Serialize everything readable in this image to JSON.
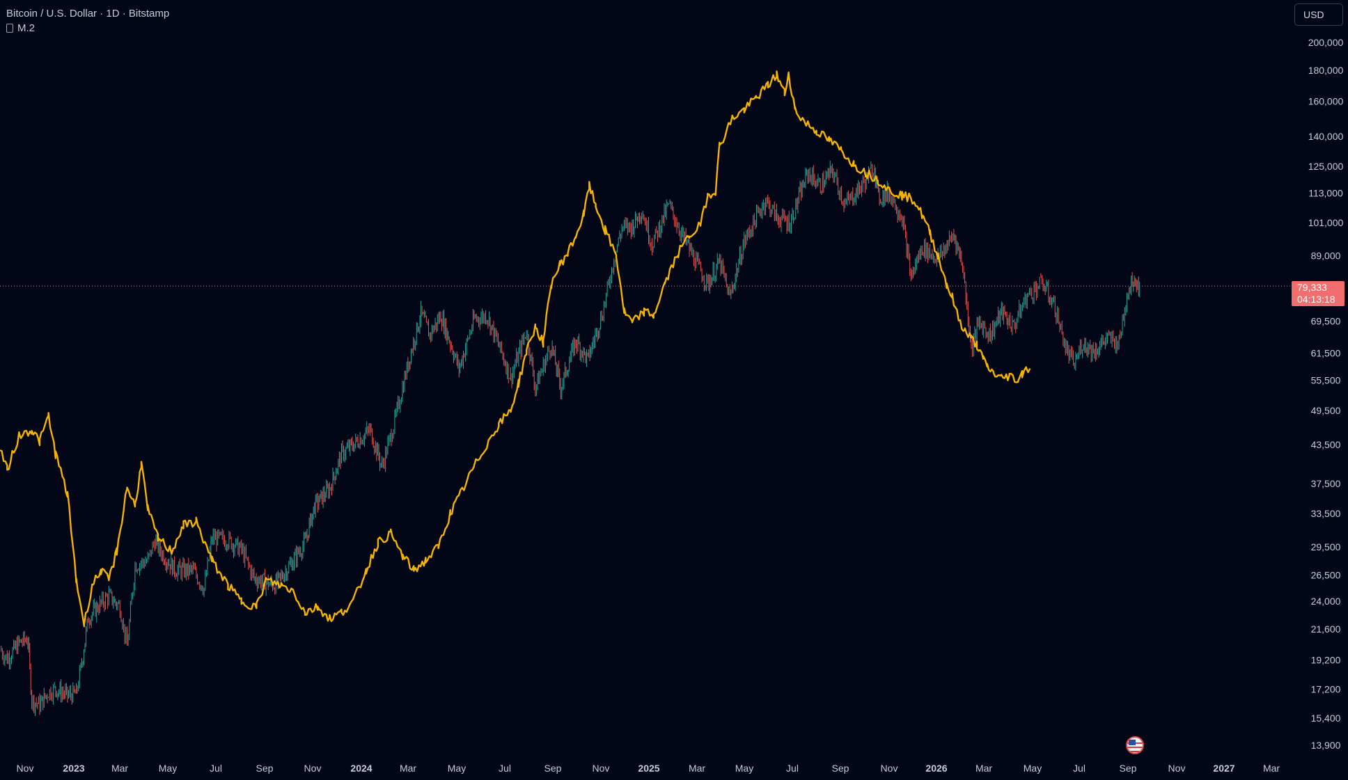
{
  "header": {
    "title": "Bitcoin / U.S. Dollar · 1D · Bitstamp",
    "indicator": "M.2"
  },
  "currency": "USD",
  "last_price": "79,333",
  "countdown": "04:13:18",
  "colors": {
    "background": "#020617",
    "m2_line": "#f5b400",
    "candle_up": "#26a69a",
    "candle_down": "#ef5350",
    "price_badge": "#f26d6d",
    "axis_text": "#c7ccd6"
  },
  "chart_data": {
    "type": "line",
    "scale": "log",
    "grid": false,
    "x_ticks": [
      "Nov",
      "2023",
      "Mar",
      "May",
      "Jul",
      "Sep",
      "Nov",
      "2024",
      "Mar",
      "May",
      "Jul",
      "Sep",
      "Nov",
      "2025",
      "Mar",
      "May",
      "Jul",
      "Sep",
      "Nov",
      "2026",
      "Mar",
      "May",
      "Jul",
      "Sep",
      "Nov",
      "2027",
      "Mar"
    ],
    "y_ticks": [
      13900,
      15400,
      17200,
      19200,
      21600,
      24000,
      26500,
      29500,
      33500,
      37500,
      43500,
      49500,
      55500,
      61500,
      69500,
      79333,
      89000,
      101000,
      113000,
      125000,
      140000,
      160000,
      180000,
      200000
    ],
    "y_tick_labels": [
      "13,900",
      "15,400",
      "17,200",
      "19,200",
      "21,600",
      "24,000",
      "26,500",
      "29,500",
      "33,500",
      "37,500",
      "43,500",
      "49,500",
      "55,500",
      "61,500",
      "69,500",
      "79,333",
      "89,000",
      "101,000",
      "113,000",
      "125,000",
      "140,000",
      "160,000",
      "180,000",
      "200,000"
    ],
    "series": [
      {
        "name": "M.2",
        "style": "line",
        "points": [
          [
            "2022-10-01",
            43000
          ],
          [
            "2022-10-10",
            39500
          ],
          [
            "2022-10-25",
            45000
          ],
          [
            "2022-11-10",
            46000
          ],
          [
            "2022-11-20",
            44000
          ],
          [
            "2022-12-01",
            48500
          ],
          [
            "2022-12-10",
            42000
          ],
          [
            "2022-12-25",
            36000
          ],
          [
            "2023-01-05",
            26000
          ],
          [
            "2023-01-15",
            22000
          ],
          [
            "2023-01-25",
            25500
          ],
          [
            "2023-02-05",
            27000
          ],
          [
            "2023-02-15",
            26000
          ],
          [
            "2023-02-25",
            29000
          ],
          [
            "2023-03-10",
            37000
          ],
          [
            "2023-03-20",
            34500
          ],
          [
            "2023-03-28",
            40500
          ],
          [
            "2023-04-05",
            34000
          ],
          [
            "2023-04-18",
            30500
          ],
          [
            "2023-05-05",
            29000
          ],
          [
            "2023-05-20",
            32000
          ],
          [
            "2023-06-05",
            32500
          ],
          [
            "2023-06-25",
            28000
          ],
          [
            "2023-07-15",
            25500
          ],
          [
            "2023-08-01",
            24000
          ],
          [
            "2023-08-20",
            23500
          ],
          [
            "2023-09-01",
            26000
          ],
          [
            "2023-09-20",
            25500
          ],
          [
            "2023-10-05",
            25000
          ],
          [
            "2023-10-20",
            23000
          ],
          [
            "2023-11-05",
            23500
          ],
          [
            "2023-11-20",
            22500
          ],
          [
            "2023-12-05",
            23000
          ],
          [
            "2023-12-20",
            24000
          ],
          [
            "2024-01-05",
            27000
          ],
          [
            "2024-01-20",
            30000
          ],
          [
            "2024-02-05",
            31000
          ],
          [
            "2024-02-20",
            28500
          ],
          [
            "2024-03-05",
            27000
          ],
          [
            "2024-03-20",
            28000
          ],
          [
            "2024-04-05",
            29500
          ],
          [
            "2024-04-20",
            33500
          ],
          [
            "2024-05-05",
            36500
          ],
          [
            "2024-05-20",
            40000
          ],
          [
            "2024-06-05",
            43500
          ],
          [
            "2024-06-20",
            47000
          ],
          [
            "2024-07-05",
            49500
          ],
          [
            "2024-07-15",
            55000
          ],
          [
            "2024-07-25",
            62000
          ],
          [
            "2024-08-05",
            68000
          ],
          [
            "2024-08-15",
            64000
          ],
          [
            "2024-08-25",
            80000
          ],
          [
            "2024-09-05",
            86000
          ],
          [
            "2024-09-15",
            90000
          ],
          [
            "2024-09-25",
            96000
          ],
          [
            "2024-10-05",
            104000
          ],
          [
            "2024-10-12",
            116000
          ],
          [
            "2024-10-20",
            108000
          ],
          [
            "2024-11-01",
            98000
          ],
          [
            "2024-11-15",
            89000
          ],
          [
            "2024-11-25",
            72000
          ],
          [
            "2024-12-05",
            69000
          ],
          [
            "2024-12-20",
            72000
          ],
          [
            "2025-01-01",
            71000
          ],
          [
            "2025-01-15",
            80000
          ],
          [
            "2025-02-01",
            90000
          ],
          [
            "2025-02-15",
            96000
          ],
          [
            "2025-03-01",
            100000
          ],
          [
            "2025-03-10",
            112000
          ],
          [
            "2025-03-20",
            114000
          ],
          [
            "2025-03-25",
            135000
          ],
          [
            "2025-04-10",
            150000
          ],
          [
            "2025-04-25",
            155000
          ],
          [
            "2025-05-10",
            162000
          ],
          [
            "2025-05-25",
            170000
          ],
          [
            "2025-06-05",
            177000
          ],
          [
            "2025-06-15",
            165000
          ],
          [
            "2025-06-20",
            178000
          ],
          [
            "2025-06-28",
            155000
          ],
          [
            "2025-07-10",
            148000
          ],
          [
            "2025-07-25",
            143000
          ],
          [
            "2025-08-10",
            138000
          ],
          [
            "2025-08-25",
            133000
          ],
          [
            "2025-09-10",
            126000
          ],
          [
            "2025-09-25",
            122000
          ],
          [
            "2025-10-10",
            119000
          ],
          [
            "2025-10-25",
            114000
          ],
          [
            "2025-11-10",
            112000
          ],
          [
            "2025-11-25",
            110000
          ],
          [
            "2025-12-05",
            104000
          ],
          [
            "2025-12-15",
            97000
          ],
          [
            "2025-12-25",
            89000
          ],
          [
            "2026-01-05",
            80000
          ],
          [
            "2026-01-12",
            76000
          ],
          [
            "2026-01-20",
            70000
          ],
          [
            "2026-01-28",
            67000
          ],
          [
            "2026-02-05",
            65000
          ],
          [
            "2026-02-12",
            63500
          ],
          [
            "2026-02-20",
            60000
          ],
          [
            "2026-02-25",
            58500
          ],
          [
            "2026-03-05",
            57000
          ],
          [
            "2026-03-15",
            56000
          ],
          [
            "2026-03-25",
            56500
          ],
          [
            "2026-04-05",
            55500
          ],
          [
            "2026-04-10",
            57000
          ],
          [
            "2026-04-15",
            58500
          ],
          [
            "2026-04-20",
            57500
          ]
        ]
      },
      {
        "name": "",
        "style": "candles",
        "points": [
          [
            "2022-10-01",
            20000
          ],
          [
            "2022-10-10",
            19300
          ],
          [
            "2022-10-25",
            20500
          ],
          [
            "2022-11-05",
            20800
          ],
          [
            "2022-11-10",
            16500
          ],
          [
            "2022-11-20",
            16200
          ],
          [
            "2022-12-01",
            17000
          ],
          [
            "2022-12-10",
            17200
          ],
          [
            "2022-12-25",
            16800
          ],
          [
            "2023-01-05",
            16900
          ],
          [
            "2023-01-12",
            19000
          ],
          [
            "2023-01-20",
            22500
          ],
          [
            "2023-02-01",
            23500
          ],
          [
            "2023-02-15",
            24500
          ],
          [
            "2023-03-01",
            23500
          ],
          [
            "2023-03-10",
            20200
          ],
          [
            "2023-03-20",
            27500
          ],
          [
            "2023-04-05",
            28000
          ],
          [
            "2023-04-14",
            30200
          ],
          [
            "2023-04-25",
            28500
          ],
          [
            "2023-05-10",
            27000
          ],
          [
            "2023-06-01",
            27000
          ],
          [
            "2023-06-15",
            25200
          ],
          [
            "2023-06-25",
            30500
          ],
          [
            "2023-07-15",
            30300
          ],
          [
            "2023-08-01",
            29200
          ],
          [
            "2023-08-17",
            26200
          ],
          [
            "2023-09-01",
            25800
          ],
          [
            "2023-09-12",
            25500
          ],
          [
            "2023-10-01",
            27500
          ],
          [
            "2023-10-20",
            30000
          ],
          [
            "2023-11-01",
            34500
          ],
          [
            "2023-11-20",
            36800
          ],
          [
            "2023-12-05",
            42000
          ],
          [
            "2023-12-20",
            43500
          ],
          [
            "2024-01-10",
            46000
          ],
          [
            "2024-01-25",
            40000
          ],
          [
            "2024-02-10",
            47500
          ],
          [
            "2024-02-28",
            60000
          ],
          [
            "2024-03-14",
            71500
          ],
          [
            "2024-03-25",
            66000
          ],
          [
            "2024-04-08",
            71000
          ],
          [
            "2024-04-20",
            64000
          ],
          [
            "2024-05-01",
            58000
          ],
          [
            "2024-05-20",
            70000
          ],
          [
            "2024-06-05",
            71000
          ],
          [
            "2024-06-25",
            61000
          ],
          [
            "2024-07-05",
            56000
          ],
          [
            "2024-07-25",
            67000
          ],
          [
            "2024-08-05",
            54000
          ],
          [
            "2024-08-25",
            63500
          ],
          [
            "2024-09-06",
            54000
          ],
          [
            "2024-09-25",
            64500
          ],
          [
            "2024-10-10",
            60000
          ],
          [
            "2024-10-29",
            72000
          ],
          [
            "2024-11-12",
            88000
          ],
          [
            "2024-11-22",
            99000
          ],
          [
            "2024-12-05",
            99500
          ],
          [
            "2024-12-17",
            106000
          ],
          [
            "2024-12-30",
            93000
          ],
          [
            "2025-01-20",
            108000
          ],
          [
            "2025-02-05",
            97000
          ],
          [
            "2025-02-25",
            86000
          ],
          [
            "2025-03-10",
            80000
          ],
          [
            "2025-03-25",
            87000
          ],
          [
            "2025-04-07",
            76000
          ],
          [
            "2025-04-25",
            94000
          ],
          [
            "2025-05-12",
            104000
          ],
          [
            "2025-05-22",
            110000
          ],
          [
            "2025-06-05",
            103000
          ],
          [
            "2025-06-22",
            101000
          ],
          [
            "2025-07-14",
            122000
          ],
          [
            "2025-07-30",
            116000
          ],
          [
            "2025-08-14",
            123000
          ],
          [
            "2025-08-30",
            108000
          ],
          [
            "2025-09-20",
            116000
          ],
          [
            "2025-10-06",
            125000
          ],
          [
            "2025-10-11",
            111000
          ],
          [
            "2025-10-25",
            113000
          ],
          [
            "2025-11-10",
            103000
          ],
          [
            "2025-11-21",
            82000
          ],
          [
            "2025-12-05",
            92000
          ],
          [
            "2025-12-25",
            88000
          ],
          [
            "2026-01-14",
            96500
          ],
          [
            "2026-01-25",
            86000
          ],
          [
            "2026-02-05",
            63000
          ],
          [
            "2026-02-15",
            69000
          ],
          [
            "2026-03-01",
            66000
          ],
          [
            "2026-03-15",
            72000
          ],
          [
            "2026-03-30",
            68000
          ],
          [
            "2026-04-15",
            76000
          ],
          [
            "2026-05-05",
            80500
          ],
          [
            "2026-05-20",
            74000
          ],
          [
            "2026-06-05",
            62000
          ],
          [
            "2026-06-15",
            59000
          ],
          [
            "2026-06-25",
            64000
          ],
          [
            "2026-07-10",
            62000
          ],
          [
            "2026-07-25",
            65000
          ],
          [
            "2026-08-10",
            64000
          ],
          [
            "2026-08-20",
            77000
          ],
          [
            "2026-08-28",
            82000
          ],
          [
            "2026-09-05",
            79333
          ]
        ]
      }
    ]
  }
}
